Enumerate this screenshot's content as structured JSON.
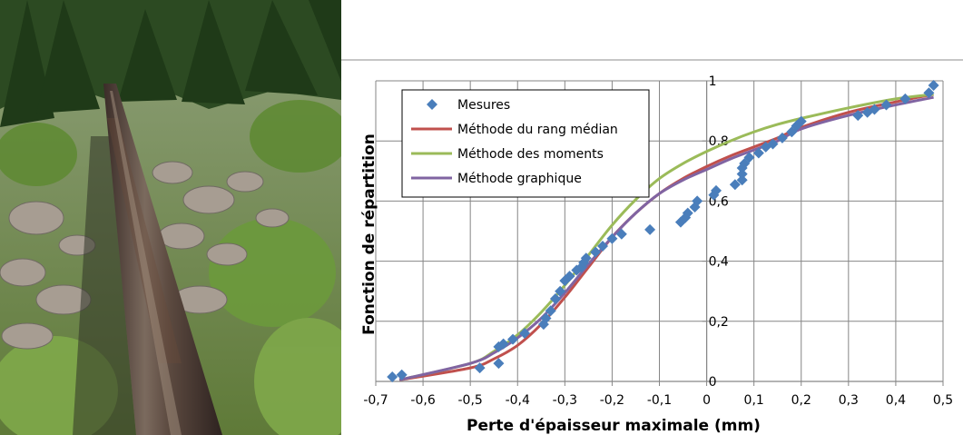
{
  "photo": {
    "subject": "above-ground pipeline crossing a rocky, forested slope",
    "colors": {
      "sky": "#b9d3b4",
      "forest_dark": "#203a18",
      "foliage": "#5f8a34",
      "grass": "#7fa84a",
      "rock": "#a79d92",
      "rock_dark": "#6f6a62",
      "pipe": "#4a3a34",
      "pipe_highlight": "#7b6a5e",
      "pipe_rust": "#6a4a3a"
    }
  },
  "chart_data": {
    "type": "scatter",
    "xlabel": "Perte d'épaisseur maximale (mm)",
    "ylabel": "Fonction de répartition",
    "xlim": [
      -0.7,
      0.5
    ],
    "ylim": [
      0,
      1
    ],
    "x_ticks": [
      "-0,7",
      "-0,6",
      "-0,5",
      "-0,4",
      "-0,3",
      "-0,2",
      "-0,1",
      "0",
      "0,1",
      "0,2",
      "0,3",
      "0,4",
      "0,5"
    ],
    "y_ticks": [
      "0",
      "0,2",
      "0,4",
      "0,6",
      "0,8",
      "1"
    ],
    "grid": true,
    "legend_position": "top-left",
    "series": [
      {
        "name": "Mesures",
        "kind": "markers",
        "marker": "diamond",
        "color": "#4a7ebb",
        "points": [
          [
            -0.665,
            0.015
          ],
          [
            -0.645,
            0.022
          ],
          [
            -0.48,
            0.045
          ],
          [
            -0.44,
            0.06
          ],
          [
            -0.44,
            0.115
          ],
          [
            -0.43,
            0.125
          ],
          [
            -0.41,
            0.14
          ],
          [
            -0.385,
            0.16
          ],
          [
            -0.345,
            0.19
          ],
          [
            -0.34,
            0.21
          ],
          [
            -0.33,
            0.235
          ],
          [
            -0.32,
            0.275
          ],
          [
            -0.31,
            0.3
          ],
          [
            -0.3,
            0.335
          ],
          [
            -0.29,
            0.35
          ],
          [
            -0.275,
            0.37
          ],
          [
            -0.265,
            0.38
          ],
          [
            -0.26,
            0.395
          ],
          [
            -0.255,
            0.41
          ],
          [
            -0.235,
            0.43
          ],
          [
            -0.22,
            0.45
          ],
          [
            -0.2,
            0.475
          ],
          [
            -0.18,
            0.49
          ],
          [
            -0.12,
            0.505
          ],
          [
            -0.055,
            0.53
          ],
          [
            -0.045,
            0.545
          ],
          [
            -0.04,
            0.56
          ],
          [
            -0.025,
            0.58
          ],
          [
            -0.02,
            0.6
          ],
          [
            0.015,
            0.62
          ],
          [
            0.02,
            0.635
          ],
          [
            0.06,
            0.655
          ],
          [
            0.075,
            0.67
          ],
          [
            0.075,
            0.69
          ],
          [
            0.075,
            0.71
          ],
          [
            0.08,
            0.725
          ],
          [
            0.09,
            0.745
          ],
          [
            0.11,
            0.76
          ],
          [
            0.125,
            0.78
          ],
          [
            0.14,
            0.79
          ],
          [
            0.16,
            0.81
          ],
          [
            0.18,
            0.83
          ],
          [
            0.19,
            0.85
          ],
          [
            0.2,
            0.865
          ],
          [
            0.32,
            0.885
          ],
          [
            0.34,
            0.895
          ],
          [
            0.355,
            0.905
          ],
          [
            0.38,
            0.92
          ],
          [
            0.42,
            0.94
          ],
          [
            0.47,
            0.96
          ],
          [
            0.48,
            0.985
          ]
        ]
      },
      {
        "name": "Méthode du rang médian",
        "kind": "line",
        "color": "#c0504d",
        "points": [
          [
            -0.65,
            0.005
          ],
          [
            -0.5,
            0.045
          ],
          [
            -0.45,
            0.075
          ],
          [
            -0.4,
            0.12
          ],
          [
            -0.35,
            0.19
          ],
          [
            -0.3,
            0.28
          ],
          [
            -0.25,
            0.38
          ],
          [
            -0.2,
            0.48
          ],
          [
            -0.15,
            0.56
          ],
          [
            -0.1,
            0.625
          ],
          [
            -0.05,
            0.675
          ],
          [
            0,
            0.715
          ],
          [
            0.05,
            0.75
          ],
          [
            0.1,
            0.78
          ],
          [
            0.15,
            0.81
          ],
          [
            0.2,
            0.845
          ],
          [
            0.3,
            0.895
          ],
          [
            0.4,
            0.93
          ],
          [
            0.48,
            0.955
          ]
        ]
      },
      {
        "name": "Méthode des moments",
        "kind": "line",
        "color": "#9bbb59",
        "points": [
          [
            -0.65,
            0.005
          ],
          [
            -0.5,
            0.06
          ],
          [
            -0.45,
            0.1
          ],
          [
            -0.4,
            0.155
          ],
          [
            -0.35,
            0.23
          ],
          [
            -0.3,
            0.32
          ],
          [
            -0.25,
            0.42
          ],
          [
            -0.2,
            0.52
          ],
          [
            -0.15,
            0.605
          ],
          [
            -0.1,
            0.675
          ],
          [
            -0.05,
            0.725
          ],
          [
            0,
            0.765
          ],
          [
            0.05,
            0.8
          ],
          [
            0.1,
            0.83
          ],
          [
            0.15,
            0.855
          ],
          [
            0.2,
            0.875
          ],
          [
            0.3,
            0.91
          ],
          [
            0.4,
            0.94
          ],
          [
            0.48,
            0.955
          ]
        ]
      },
      {
        "name": "Méthode graphique",
        "kind": "line",
        "color": "#8064a2",
        "points": [
          [
            -0.65,
            0.005
          ],
          [
            -0.5,
            0.06
          ],
          [
            -0.45,
            0.095
          ],
          [
            -0.4,
            0.145
          ],
          [
            -0.35,
            0.21
          ],
          [
            -0.3,
            0.295
          ],
          [
            -0.25,
            0.39
          ],
          [
            -0.2,
            0.48
          ],
          [
            -0.15,
            0.56
          ],
          [
            -0.1,
            0.625
          ],
          [
            -0.05,
            0.67
          ],
          [
            0,
            0.705
          ],
          [
            0.05,
            0.74
          ],
          [
            0.1,
            0.77
          ],
          [
            0.15,
            0.8
          ],
          [
            0.2,
            0.84
          ],
          [
            0.3,
            0.885
          ],
          [
            0.4,
            0.92
          ],
          [
            0.48,
            0.945
          ]
        ]
      }
    ]
  }
}
